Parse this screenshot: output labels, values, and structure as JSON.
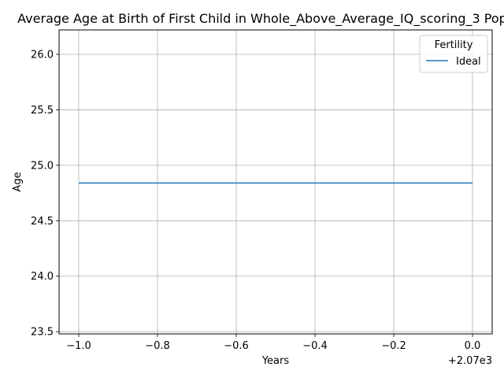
{
  "chart_data": {
    "type": "line",
    "title": "Average Age at Birth of First Child in Whole_Above_Average_IQ_scoring_3 Pop",
    "xlabel": "Years",
    "ylabel": "Age",
    "x_offset_label": "+2.07e3",
    "x_tick_labels": [
      "−1.0",
      "−0.8",
      "−0.6",
      "−0.4",
      "−0.2",
      "0.0"
    ],
    "y_tick_labels": [
      "23.5",
      "24.0",
      "24.5",
      "25.0",
      "25.5",
      "26.0"
    ],
    "xlim": [
      2068.95,
      2070.05
    ],
    "ylim": [
      23.48,
      26.22
    ],
    "x_ticks": [
      2069.0,
      2069.2,
      2069.4,
      2069.6,
      2069.8,
      2070.0
    ],
    "y_ticks": [
      23.5,
      24.0,
      24.5,
      25.0,
      25.5,
      26.0
    ],
    "grid": true,
    "legend": {
      "title": "Fertility",
      "placement": "top-right"
    },
    "series": [
      {
        "name": "Ideal",
        "color": "#1f77b4",
        "x": [
          2069,
          2070
        ],
        "y": [
          24.84,
          24.84
        ]
      }
    ]
  }
}
